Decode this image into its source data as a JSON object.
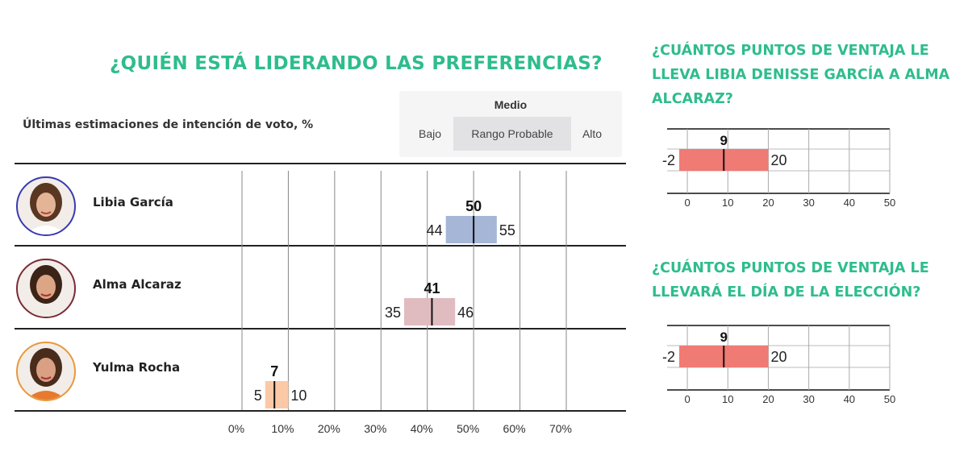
{
  "title": "¿QUIÉN ESTÁ LIDERANDO LAS PREFERENCIAS?",
  "subtitle": "Últimas estimaciones de intención de voto, %",
  "legend": {
    "medio": "Medio",
    "bajo": "Bajo",
    "rango": "Rango Probable",
    "alto": "Alto"
  },
  "candidates": [
    {
      "name": "Libia García",
      "ring_color": "#3a3ab0"
    },
    {
      "name": "Alma Alcaraz",
      "ring_color": "#7a2b36"
    },
    {
      "name": "Yulma Rocha",
      "ring_color": "#e8993c"
    }
  ],
  "chart_data": [
    {
      "type": "bar",
      "title": "¿QUIÉN ESTÁ LIDERANDO LAS PREFERENCIAS?",
      "subtitle": "Últimas estimaciones de intención de voto, %",
      "categories": [
        "Libia García",
        "Alma Alcaraz",
        "Yulma Rocha"
      ],
      "series": [
        {
          "name": "Bajo",
          "values": [
            44,
            35,
            5
          ]
        },
        {
          "name": "Medio",
          "values": [
            50,
            41,
            7
          ]
        },
        {
          "name": "Alto",
          "values": [
            55,
            46,
            10
          ]
        }
      ],
      "colors": [
        "#a5b6d6",
        "#e0bcc0",
        "#fcc9a6"
      ],
      "xticks": [
        "0%",
        "10%",
        "20%",
        "30%",
        "40%",
        "50%",
        "60%",
        "70%"
      ],
      "xlim": [
        0,
        70
      ],
      "grid": true
    },
    {
      "type": "bar",
      "title": "¿CUÁNTOS PUNTOS DE VENTAJA LE LLEVA LIBIA DENISSE GARCÍA A ALMA ALCARAZ?",
      "low": -2,
      "mid": 9,
      "high": 20,
      "color": "#f07a74",
      "xticks": [
        "0",
        "10",
        "20",
        "30",
        "40",
        "50"
      ],
      "xlim": [
        -5,
        50
      ],
      "grid": true
    },
    {
      "type": "bar",
      "title": "¿CUÁNTOS PUNTOS DE VENTAJA LE LLEVARÁ EL DÍA DE LA ELECCIÓN?",
      "low": -2,
      "mid": 9,
      "high": 20,
      "color": "#f07a74",
      "xticks": [
        "0",
        "10",
        "20",
        "30",
        "40",
        "50"
      ],
      "xlim": [
        -5,
        50
      ],
      "grid": true
    }
  ]
}
